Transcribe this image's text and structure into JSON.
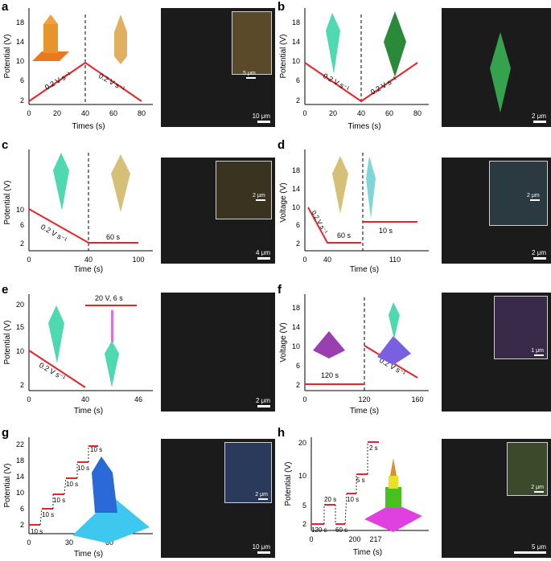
{
  "panels": [
    {
      "letter": "a",
      "ylabel": "Potential (V)",
      "xlabel": "Times (s)",
      "yticks": [
        "2",
        "6",
        "10",
        "14",
        "18"
      ],
      "xticks": [
        "0",
        "20",
        "40",
        "60",
        "80"
      ],
      "annotations": [
        "0.2 V s⁻¹",
        "0.2 V s⁻¹"
      ],
      "sem_scale": "10 μm",
      "inset_scale": "5 μm"
    },
    {
      "letter": "b",
      "ylabel": "Potential (V)",
      "xlabel": "Times (s)",
      "yticks": [
        "2",
        "6",
        "10",
        "14",
        "18"
      ],
      "xticks": [
        "0",
        "20",
        "40",
        "60",
        "80"
      ],
      "annotations": [
        "0.2 V s⁻¹",
        "0.2 V s⁻¹"
      ],
      "sem_scale": "2 μm"
    },
    {
      "letter": "c",
      "ylabel": "Potential (V)",
      "xlabel": "Time (s)",
      "yticks": [
        "2",
        "6",
        "10"
      ],
      "xticks": [
        "0",
        "40",
        "100"
      ],
      "annotations": [
        "0.2 V s⁻¹",
        "60 s"
      ],
      "sem_scale": "4 μm",
      "inset_scale": "2 μm"
    },
    {
      "letter": "d",
      "ylabel": "Voltage (V)",
      "xlabel": "Time (s)",
      "yticks": [
        "2",
        "6",
        "10",
        "14",
        "18"
      ],
      "xticks": [
        "0",
        "40",
        "110"
      ],
      "annotations": [
        "0.2 V s⁻¹",
        "60 s",
        "10 s"
      ],
      "sem_scale": "2 μm",
      "inset_scale": "2 μm"
    },
    {
      "letter": "e",
      "ylabel": "Potential (V)",
      "xlabel": "Time (s)",
      "yticks": [
        "2",
        "10",
        "15",
        "20"
      ],
      "xticks": [
        "0",
        "40",
        "46"
      ],
      "annotations": [
        "0.2 V s⁻¹",
        "20 V, 6 s"
      ],
      "sem_scale": "2 μm"
    },
    {
      "letter": "f",
      "ylabel": "Voltage (V)",
      "xlabel": "Time (s)",
      "yticks": [
        "2",
        "6",
        "10",
        "14",
        "18"
      ],
      "xticks": [
        "0",
        "120",
        "160"
      ],
      "annotations": [
        "120 s",
        "0.2 V s⁻¹"
      ],
      "sem_scale": "",
      "inset_scale": "1 μm"
    },
    {
      "letter": "g",
      "ylabel": "Potential (V)",
      "xlabel": "Time (s)",
      "yticks": [
        "2",
        "6",
        "10",
        "14",
        "18",
        "22"
      ],
      "xticks": [
        "0",
        "30",
        "60"
      ],
      "annotations": [
        "10 s",
        "10 s",
        "10 s",
        "10 s",
        "10 s",
        "10 s"
      ],
      "sem_scale": "10 μm",
      "inset_scale": "2 μm"
    },
    {
      "letter": "h",
      "ylabel": "Potential (V)",
      "xlabel": "Time (s)",
      "yticks": [
        "2",
        "5",
        "10",
        "20"
      ],
      "xticks": [
        "0",
        "200",
        "217"
      ],
      "annotations": [
        "120 s",
        "20 s",
        "60 s",
        "10 s",
        "5 s",
        "2 s"
      ],
      "sem_scale": "5 μm",
      "inset_scale": "2 μm"
    }
  ],
  "colors": {
    "line": "#e8242a",
    "accent": "#000000"
  }
}
